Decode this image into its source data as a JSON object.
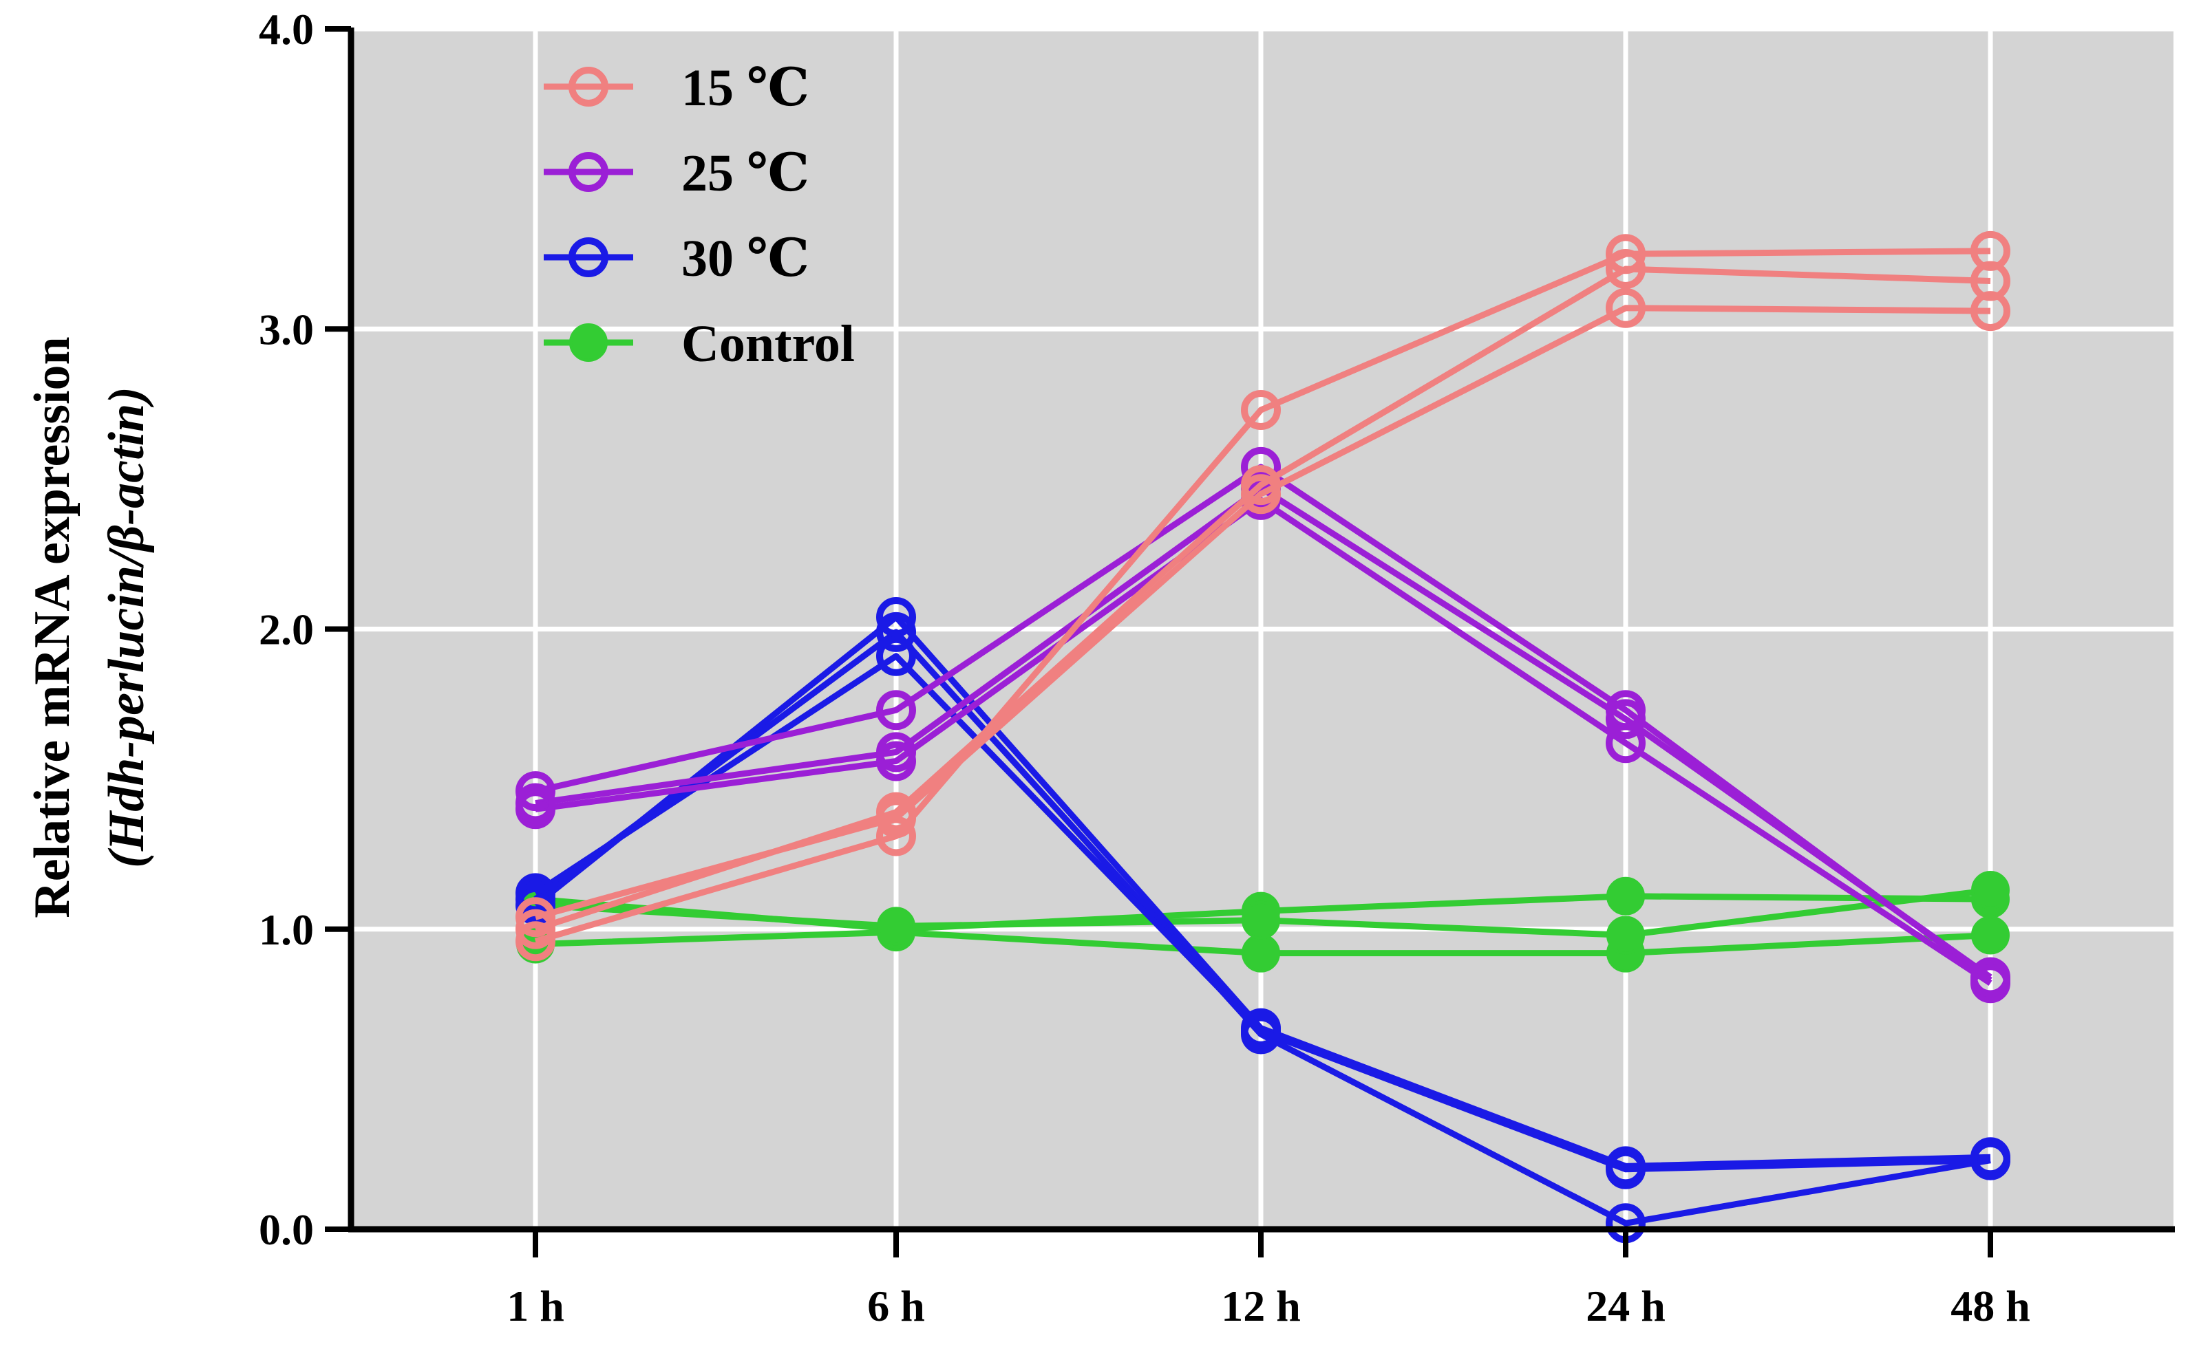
{
  "chart_data": {
    "type": "line",
    "title": "",
    "xlabel": "",
    "ylabel_line1": "Relative mRNA expression",
    "ylabel_line2": "(Hdh-perlucin/β-actin)",
    "categories": [
      "1 h",
      "6 h",
      "12 h",
      "24 h",
      "48 h"
    ],
    "y_ticks": [
      "0.0",
      "1.0",
      "2.0",
      "3.0",
      "4.0"
    ],
    "ylim": [
      0,
      4
    ],
    "grid": true,
    "legend_position": "top-left",
    "series": [
      {
        "name": "Control",
        "color": "#33cc33",
        "marker": "filled-circle",
        "replicates": [
          [
            1.1,
            1.0,
            1.06,
            1.11,
            1.1
          ],
          [
            0.95,
            0.99,
            0.92,
            0.92,
            0.98
          ],
          [
            1.08,
            1.01,
            1.03,
            0.98,
            1.13
          ]
        ]
      },
      {
        "name": "30 ℃",
        "color": "#1a1ae6",
        "marker": "open-circle",
        "replicates": [
          [
            1.08,
            2.04,
            0.67,
            0.21,
            0.24
          ],
          [
            1.1,
            1.99,
            0.65,
            0.02,
            0.23
          ],
          [
            1.12,
            1.91,
            0.66,
            0.2,
            0.23
          ]
        ]
      },
      {
        "name": "25 ℃",
        "color": "#9b1fd6",
        "marker": "open-circle",
        "replicates": [
          [
            1.46,
            1.73,
            2.54,
            1.73,
            0.83
          ],
          [
            1.4,
            1.56,
            2.43,
            1.62,
            0.82
          ],
          [
            1.42,
            1.59,
            2.47,
            1.7,
            0.84
          ]
        ]
      },
      {
        "name": "15 ℃",
        "color": "#f08080",
        "marker": "open-circle",
        "replicates": [
          [
            0.96,
            1.31,
            2.73,
            3.25,
            3.26
          ],
          [
            1.04,
            1.37,
            2.45,
            3.07,
            3.06
          ],
          [
            1.0,
            1.39,
            2.48,
            3.2,
            3.16
          ]
        ]
      }
    ],
    "legend": [
      {
        "label": "15 ℃",
        "color": "#f08080",
        "marker": "open-circle"
      },
      {
        "label": "25 ℃",
        "color": "#9b1fd6",
        "marker": "open-circle"
      },
      {
        "label": "30 ℃",
        "color": "#1a1ae6",
        "marker": "open-circle"
      },
      {
        "label": "Control",
        "color": "#33cc33",
        "marker": "filled-circle"
      }
    ]
  }
}
